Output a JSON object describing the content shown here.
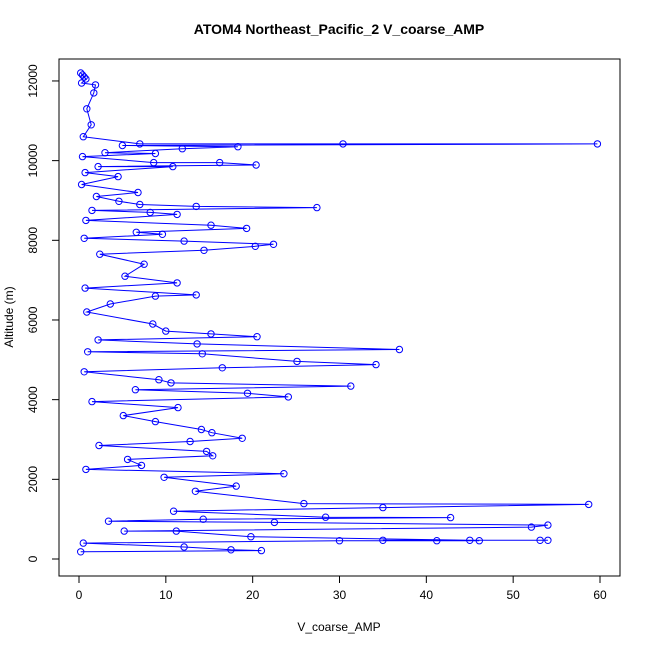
{
  "chart_data": {
    "type": "line",
    "title": "ATOM4 Northeast_Pacific_2 V_coarse_AMP",
    "xlabel": "V_coarse_AMP",
    "ylabel": "Altitude (m)",
    "xlim": [
      0,
      60
    ],
    "ylim": [
      0,
      12250
    ],
    "x_ticks": [
      0,
      10,
      20,
      30,
      40,
      50,
      60
    ],
    "y_ticks": [
      0,
      2000,
      4000,
      6000,
      8000,
      10000,
      12000
    ],
    "grid": false,
    "legend": "none",
    "color": "#0000ff",
    "series": [
      {
        "points": [
          {
            "x": 0.2,
            "y": 12200
          },
          {
            "x": 0.4,
            "y": 12150
          },
          {
            "x": 0.6,
            "y": 12100
          },
          {
            "x": 0.8,
            "y": 12050
          },
          {
            "x": 0.3,
            "y": 11950
          },
          {
            "x": 1.9,
            "y": 11900
          },
          {
            "x": 1.7,
            "y": 11700
          },
          {
            "x": 0.9,
            "y": 11300
          },
          {
            "x": 1.4,
            "y": 10900
          },
          {
            "x": 0.5,
            "y": 10600
          },
          {
            "x": 18.3,
            "y": 10350
          },
          {
            "x": 7.0,
            "y": 10420
          },
          {
            "x": 30.4,
            "y": 10420
          },
          {
            "x": 59.7,
            "y": 10420
          },
          {
            "x": 5.0,
            "y": 10380
          },
          {
            "x": 11.9,
            "y": 10300
          },
          {
            "x": 3.0,
            "y": 10200
          },
          {
            "x": 8.8,
            "y": 10180
          },
          {
            "x": 0.4,
            "y": 10100
          },
          {
            "x": 8.6,
            "y": 9950
          },
          {
            "x": 16.2,
            "y": 9950
          },
          {
            "x": 20.4,
            "y": 9890
          },
          {
            "x": 2.2,
            "y": 9850
          },
          {
            "x": 10.8,
            "y": 9850
          },
          {
            "x": 0.7,
            "y": 9700
          },
          {
            "x": 4.5,
            "y": 9600
          },
          {
            "x": 0.3,
            "y": 9400
          },
          {
            "x": 6.8,
            "y": 9200
          },
          {
            "x": 2.0,
            "y": 9100
          },
          {
            "x": 4.6,
            "y": 8980
          },
          {
            "x": 7.0,
            "y": 8900
          },
          {
            "x": 13.5,
            "y": 8850
          },
          {
            "x": 27.4,
            "y": 8820
          },
          {
            "x": 1.5,
            "y": 8750
          },
          {
            "x": 8.2,
            "y": 8700
          },
          {
            "x": 11.3,
            "y": 8650
          },
          {
            "x": 0.8,
            "y": 8500
          },
          {
            "x": 15.2,
            "y": 8380
          },
          {
            "x": 19.3,
            "y": 8300
          },
          {
            "x": 6.6,
            "y": 8200
          },
          {
            "x": 9.6,
            "y": 8150
          },
          {
            "x": 0.6,
            "y": 8050
          },
          {
            "x": 12.1,
            "y": 7980
          },
          {
            "x": 22.4,
            "y": 7900
          },
          {
            "x": 20.3,
            "y": 7850
          },
          {
            "x": 14.4,
            "y": 7750
          },
          {
            "x": 2.4,
            "y": 7650
          },
          {
            "x": 7.5,
            "y": 7400
          },
          {
            "x": 5.3,
            "y": 7100
          },
          {
            "x": 11.3,
            "y": 6930
          },
          {
            "x": 0.7,
            "y": 6800
          },
          {
            "x": 13.5,
            "y": 6630
          },
          {
            "x": 8.8,
            "y": 6600
          },
          {
            "x": 3.6,
            "y": 6400
          },
          {
            "x": 0.9,
            "y": 6200
          },
          {
            "x": 8.5,
            "y": 5900
          },
          {
            "x": 10.0,
            "y": 5720
          },
          {
            "x": 15.2,
            "y": 5650
          },
          {
            "x": 20.5,
            "y": 5580
          },
          {
            "x": 2.2,
            "y": 5500
          },
          {
            "x": 13.6,
            "y": 5400
          },
          {
            "x": 36.9,
            "y": 5260
          },
          {
            "x": 1.0,
            "y": 5200
          },
          {
            "x": 14.2,
            "y": 5150
          },
          {
            "x": 25.1,
            "y": 4960
          },
          {
            "x": 34.2,
            "y": 4880
          },
          {
            "x": 16.5,
            "y": 4800
          },
          {
            "x": 0.6,
            "y": 4700
          },
          {
            "x": 9.2,
            "y": 4500
          },
          {
            "x": 10.6,
            "y": 4420
          },
          {
            "x": 31.3,
            "y": 4340
          },
          {
            "x": 6.5,
            "y": 4250
          },
          {
            "x": 19.4,
            "y": 4160
          },
          {
            "x": 24.1,
            "y": 4070
          },
          {
            "x": 1.5,
            "y": 3950
          },
          {
            "x": 11.4,
            "y": 3800
          },
          {
            "x": 5.1,
            "y": 3600
          },
          {
            "x": 8.8,
            "y": 3450
          },
          {
            "x": 14.1,
            "y": 3250
          },
          {
            "x": 15.3,
            "y": 3170
          },
          {
            "x": 18.8,
            "y": 3030
          },
          {
            "x": 12.8,
            "y": 2950
          },
          {
            "x": 2.3,
            "y": 2850
          },
          {
            "x": 14.7,
            "y": 2700
          },
          {
            "x": 15.4,
            "y": 2590
          },
          {
            "x": 5.6,
            "y": 2500
          },
          {
            "x": 7.2,
            "y": 2350
          },
          {
            "x": 0.8,
            "y": 2250
          },
          {
            "x": 23.6,
            "y": 2140
          },
          {
            "x": 9.8,
            "y": 2050
          },
          {
            "x": 18.1,
            "y": 1830
          },
          {
            "x": 13.4,
            "y": 1700
          },
          {
            "x": 25.9,
            "y": 1390
          },
          {
            "x": 35.0,
            "y": 1290
          },
          {
            "x": 58.7,
            "y": 1370
          },
          {
            "x": 10.9,
            "y": 1200
          },
          {
            "x": 28.4,
            "y": 1050
          },
          {
            "x": 42.8,
            "y": 1040
          },
          {
            "x": 14.3,
            "y": 1000
          },
          {
            "x": 3.4,
            "y": 950
          },
          {
            "x": 22.5,
            "y": 920
          },
          {
            "x": 54.0,
            "y": 850
          },
          {
            "x": 52.1,
            "y": 800
          },
          {
            "x": 5.2,
            "y": 700
          },
          {
            "x": 11.2,
            "y": 700
          },
          {
            "x": 19.8,
            "y": 560
          },
          {
            "x": 45.0,
            "y": 470
          },
          {
            "x": 46.1,
            "y": 460
          },
          {
            "x": 53.1,
            "y": 470
          },
          {
            "x": 54.0,
            "y": 470
          },
          {
            "x": 41.2,
            "y": 460
          },
          {
            "x": 35.0,
            "y": 470
          },
          {
            "x": 30.0,
            "y": 460
          },
          {
            "x": 0.5,
            "y": 400
          },
          {
            "x": 12.1,
            "y": 300
          },
          {
            "x": 21.0,
            "y": 210
          },
          {
            "x": 17.5,
            "y": 230
          },
          {
            "x": 0.2,
            "y": 180
          }
        ]
      }
    ]
  }
}
